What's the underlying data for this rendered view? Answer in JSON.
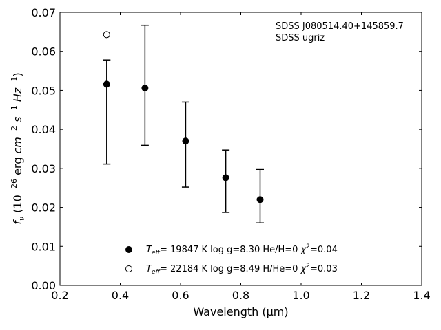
{
  "chart_data": {
    "type": "scatter",
    "xlabel": "Wavelength (μm)",
    "ylabel_parts": [
      "f",
      "ν",
      " (10",
      "−26",
      " erg ",
      "cm",
      "−2",
      " ",
      "s",
      "−1",
      " ",
      "Hz",
      "−1",
      ")"
    ],
    "xlim": [
      0.2,
      1.4
    ],
    "ylim": [
      0.0,
      0.07
    ],
    "xticks": [
      0.2,
      0.4,
      0.6,
      0.8,
      1.0,
      1.2,
      1.4
    ],
    "yticks": [
      0.0,
      0.01,
      0.02,
      0.03,
      0.04,
      0.05,
      0.06,
      0.07
    ],
    "xtick_labels": [
      "0.2",
      "0.4",
      "0.6",
      "0.8",
      "1.0",
      "1.2",
      "1.4"
    ],
    "ytick_labels": [
      "0.00",
      "0.01",
      "0.02",
      "0.03",
      "0.04",
      "0.05",
      "0.06",
      "0.07"
    ],
    "annotations": [
      "SDSS J080514.40+145859.7",
      "SDSS ugriz"
    ],
    "series": [
      {
        "marker": "filled-circle",
        "color": "#000000",
        "x": [
          0.355,
          0.482,
          0.617,
          0.75,
          0.864
        ],
        "y": [
          0.0516,
          0.0506,
          0.037,
          0.0276,
          0.022
        ],
        "err_low": [
          0.0311,
          0.0359,
          0.0252,
          0.0187,
          0.016
        ],
        "err_high": [
          0.0578,
          0.0667,
          0.047,
          0.0347,
          0.0297
        ]
      },
      {
        "marker": "open-circle",
        "color": "#000000",
        "x": [
          0.355
        ],
        "y": [
          0.0643
        ]
      }
    ],
    "legend": {
      "placement": "lower-center",
      "entries": [
        {
          "marker": "filled-circle",
          "teff_label": "T",
          "teff_sub": "eff",
          "text": "= 19847 K  log g=8.30  He/H=0  ",
          "chi_label": "χ",
          "chi_sup": "2",
          "chi_value": "=0.04"
        },
        {
          "marker": "open-circle",
          "teff_label": "T",
          "teff_sub": "eff",
          "text": "= 22184 K  log g=8.49  H/He=0  ",
          "chi_label": "χ",
          "chi_sup": "2",
          "chi_value": "=0.03"
        }
      ]
    },
    "grid": false
  }
}
